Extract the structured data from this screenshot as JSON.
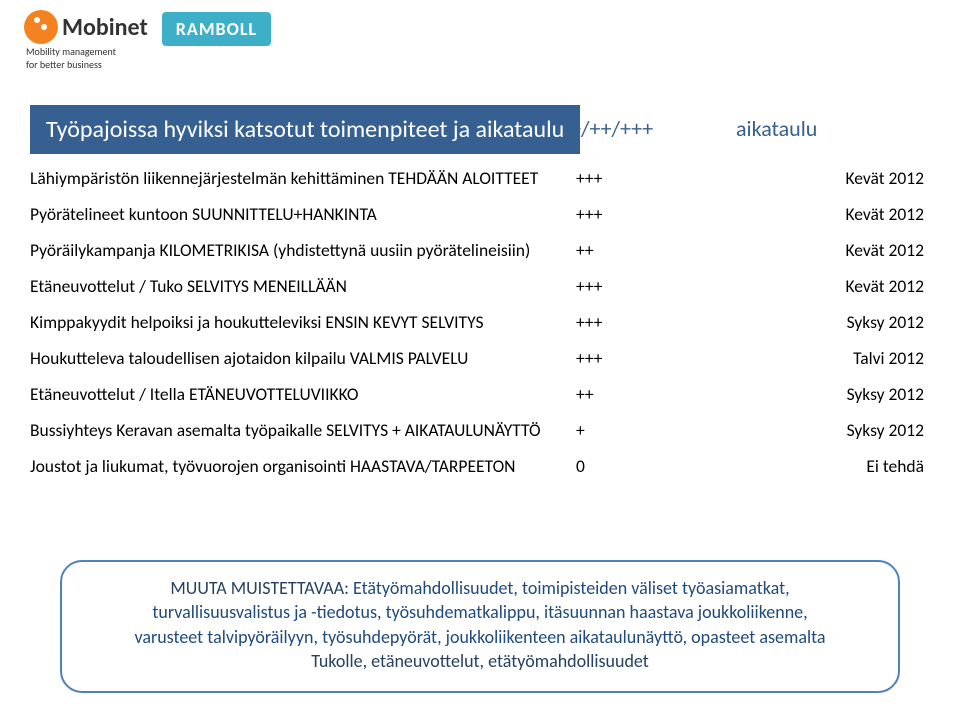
{
  "logos": {
    "mobinet_name": "Mobinet",
    "mobinet_tag1": "Mobility management",
    "mobinet_tag2": "for better business",
    "ramboll": "RAMBOLL"
  },
  "header": {
    "title": "Työpajoissa hyviksi katsotut toimenpiteet ja aikataulu",
    "col_plus": "+/++/+++",
    "col_aika": "aikataulu"
  },
  "rows": [
    {
      "label": "Lähiympäristön liikennejärjestelmän kehittäminen TEHDÄÄN ALOITTEET",
      "rating": "+++",
      "when": "Kevät 2012"
    },
    {
      "label": "Pyörätelineet kuntoon SUUNNITTELU+HANKINTA",
      "rating": "+++",
      "when": "Kevät 2012"
    },
    {
      "label": "Pyöräilykampanja KILOMETRIKISA (yhdistettynä uusiin pyörätelineisiin)",
      "rating": "++",
      "when": "Kevät 2012"
    },
    {
      "label": "Etäneuvottelut / Tuko SELVITYS MENEILLÄÄN",
      "rating": "+++",
      "when": "Kevät 2012"
    },
    {
      "label": "Kimppakyydit helpoiksi ja houkutteleviksi ENSIN KEVYT SELVITYS",
      "rating": "+++",
      "when": "Syksy 2012"
    },
    {
      "label": "Houkutteleva taloudellisen ajotaidon kilpailu VALMIS PALVELU",
      "rating": "+++",
      "when": "Talvi 2012"
    },
    {
      "label": "Etäneuvottelut / Itella ETÄNEUVOTTELUVIIKKO",
      "rating": "++",
      "when": "Syksy 2012"
    },
    {
      "label": "Bussiyhteys Keravan asemalta työpaikalle SELVITYS + AIKATAULUNÄYTTÖ",
      "rating": "+",
      "when": "Syksy 2012"
    },
    {
      "label": "Joustot ja liukumat, työvuorojen organisointi HAASTAVA/TARPEETON",
      "rating": "0",
      "when": "Ei tehdä"
    }
  ],
  "note": {
    "lead": "MUUTA MUISTETTAVAA: ",
    "body1": "Etätyömahdollisuudet, toimipisteiden väliset työasiamatkat,",
    "body2": "turvallisuusvalistus ja -tiedotus, työsuhdematkalippu, itäsuunnan haastava joukkoliikenne,",
    "body3": "varusteet talvipyöräilyyn, työsuhdepyörät, joukkoliikenteen aikataulunäyttö, opasteet asemalta",
    "body4": "Tukolle, etäneuvottelut, etätyömahdollisuudet"
  },
  "colors": {
    "header_bg": "#376092",
    "header_text": "#ffffff",
    "accent_text": "#376092",
    "note_border": "#4f81bd",
    "note_text": "#1f497d",
    "mobinet_circle": "#f58220",
    "ramboll_bg": "#3db0c8"
  }
}
